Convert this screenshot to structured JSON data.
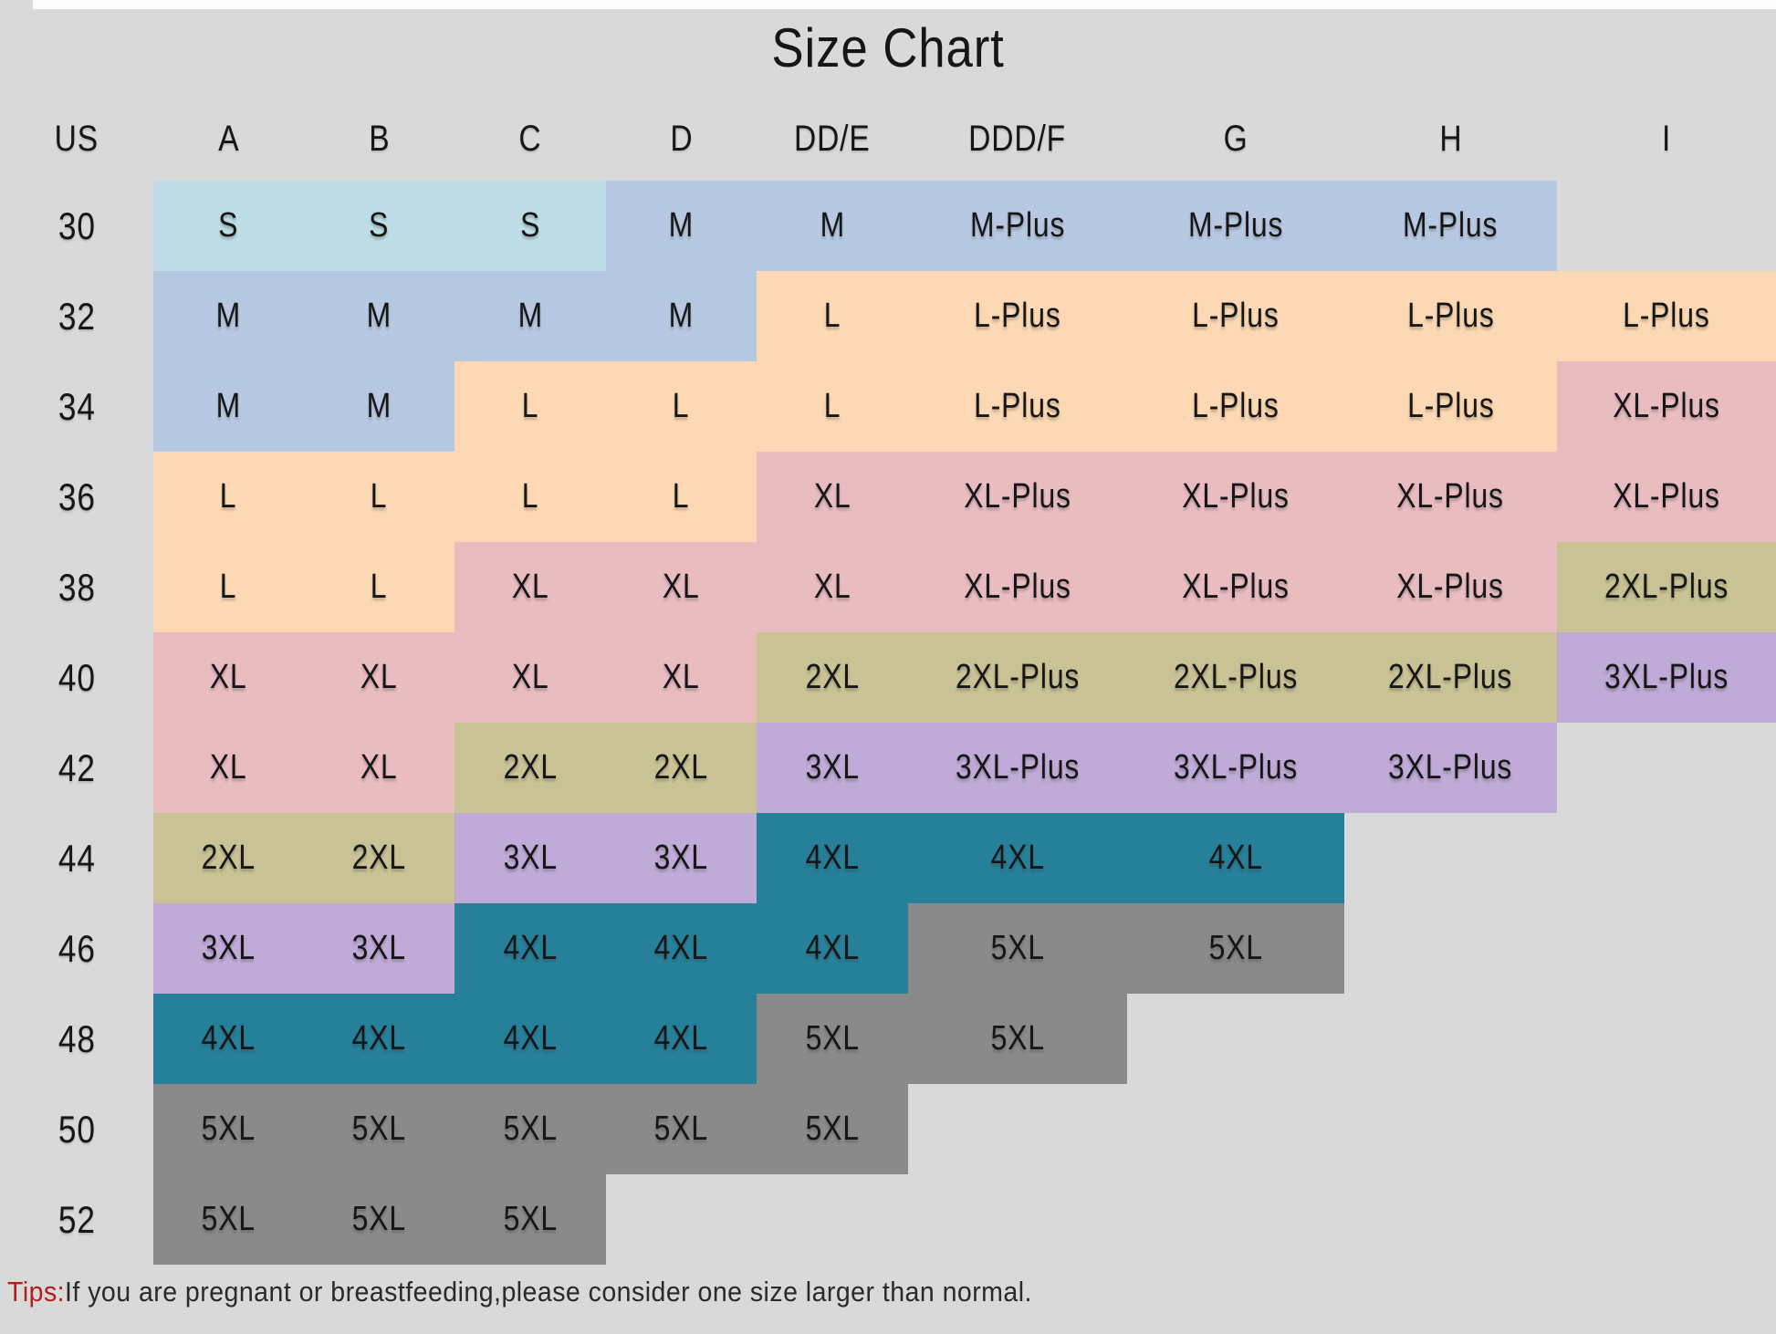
{
  "title": "Size Chart",
  "tips": {
    "prefix": "Tips:",
    "text": "If you are pregnant or breastfeeding,please consider one size larger than normal."
  },
  "colors": {
    "background": "#d9d9d9",
    "text": "#161616",
    "tips_red": "#b01f1f",
    "size_palette": {
      "S": "#bedde7",
      "M": "#b7c9e2",
      "L": "#fcd8b4",
      "XL": "#e9bcc0",
      "2XL": "#c9c294",
      "3XL": "#c0aad8",
      "4XL": "#26809a",
      "5XL": "#8a8a8a"
    }
  },
  "chart_data": {
    "type": "table",
    "title": "Size Chart",
    "columns": [
      "US",
      "A",
      "B",
      "C",
      "D",
      "DD/E",
      "DDD/F",
      "G",
      "H",
      "I"
    ],
    "rows": [
      {
        "us": "30",
        "cells": [
          "S",
          "S",
          "S",
          "M",
          "M",
          "M-Plus",
          "M-Plus",
          "M-Plus",
          null
        ]
      },
      {
        "us": "32",
        "cells": [
          "M",
          "M",
          "M",
          "M",
          "L",
          "L-Plus",
          "L-Plus",
          "L-Plus",
          "L-Plus"
        ]
      },
      {
        "us": "34",
        "cells": [
          "M",
          "M",
          "L",
          "L",
          "L",
          "L-Plus",
          "L-Plus",
          "L-Plus",
          "XL-Plus"
        ]
      },
      {
        "us": "36",
        "cells": [
          "L",
          "L",
          "L",
          "L",
          "XL",
          "XL-Plus",
          "XL-Plus",
          "XL-Plus",
          "XL-Plus"
        ]
      },
      {
        "us": "38",
        "cells": [
          "L",
          "L",
          "XL",
          "XL",
          "XL",
          "XL-Plus",
          "XL-Plus",
          "XL-Plus",
          "2XL-Plus"
        ]
      },
      {
        "us": "40",
        "cells": [
          "XL",
          "XL",
          "XL",
          "XL",
          "2XL",
          "2XL-Plus",
          "2XL-Plus",
          "2XL-Plus",
          "3XL-Plus"
        ]
      },
      {
        "us": "42",
        "cells": [
          "XL",
          "XL",
          "2XL",
          "2XL",
          "3XL",
          "3XL-Plus",
          "3XL-Plus",
          "3XL-Plus",
          null
        ]
      },
      {
        "us": "44",
        "cells": [
          "2XL",
          "2XL",
          "3XL",
          "3XL",
          "4XL",
          "4XL",
          "4XL",
          null,
          null
        ]
      },
      {
        "us": "46",
        "cells": [
          "3XL",
          "3XL",
          "4XL",
          "4XL",
          "4XL",
          "5XL",
          "5XL",
          null,
          null
        ]
      },
      {
        "us": "48",
        "cells": [
          "4XL",
          "4XL",
          "4XL",
          "4XL",
          "5XL",
          "5XL",
          null,
          null,
          null
        ]
      },
      {
        "us": "50",
        "cells": [
          "5XL",
          "5XL",
          "5XL",
          "5XL",
          "5XL",
          null,
          null,
          null,
          null
        ]
      },
      {
        "us": "52",
        "cells": [
          "5XL",
          "5XL",
          "5XL",
          null,
          null,
          null,
          null,
          null,
          null
        ]
      }
    ]
  }
}
